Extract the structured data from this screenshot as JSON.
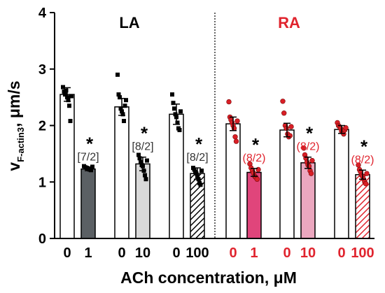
{
  "chart_data": {
    "type": "bar",
    "ylabel_main": "v",
    "ylabel_sub": "F-actin3",
    "ylabel_units": "μm/s",
    "xlabel": "ACh concentration, μM",
    "ylim": [
      0,
      4
    ],
    "yticks": [
      "0",
      "1",
      "2",
      "3",
      "4"
    ],
    "group_labels": [
      "LA",
      "RA"
    ],
    "categories": [
      "0",
      "1",
      "0",
      "10",
      "0",
      "100",
      "0",
      "1",
      "0",
      "10",
      "0",
      "100"
    ],
    "values": [
      2.55,
      1.23,
      2.33,
      1.32,
      2.2,
      1.15,
      2.03,
      1.17,
      1.92,
      1.34,
      1.93,
      1.13
    ],
    "errors": [
      0.12,
      0.03,
      0.15,
      0.12,
      0.18,
      0.1,
      0.12,
      0.07,
      0.12,
      0.1,
      0.07,
      0.08
    ],
    "points": [
      [
        2.68,
        2.6,
        2.55,
        2.62,
        2.5,
        2.45,
        2.35,
        2.08,
        2.52
      ],
      [
        1.28,
        1.26,
        1.25,
        1.24,
        1.22,
        1.21,
        1.27
      ],
      [
        2.9,
        2.55,
        2.5,
        2.3,
        2.25,
        2.2,
        2.08,
        2.35,
        2.45
      ],
      [
        1.48,
        1.42,
        1.35,
        1.3,
        1.28,
        1.2,
        1.12,
        1.05,
        1.38
      ],
      [
        2.55,
        2.4,
        2.3,
        2.2,
        2.15,
        2.05,
        1.95,
        1.92,
        2.25
      ],
      [
        1.25,
        1.22,
        1.18,
        1.15,
        1.1,
        1.05,
        0.98,
        0.95,
        1.2
      ],
      [
        2.42,
        2.15,
        2.1,
        2.05,
        2.0,
        1.95,
        1.8,
        1.72,
        2.08
      ],
      [
        1.32,
        1.25,
        1.2,
        1.16,
        1.1,
        1.08,
        1.05,
        1.22
      ],
      [
        2.43,
        2.22,
        2.0,
        1.95,
        1.85,
        1.8,
        1.82,
        1.98
      ],
      [
        1.6,
        1.48,
        1.42,
        1.35,
        1.3,
        1.28,
        1.2,
        1.15,
        1.38
      ],
      [
        2.05,
        2.0,
        1.98,
        1.95,
        1.9,
        1.88,
        1.85,
        1.92,
        1.96
      ],
      [
        1.3,
        1.22,
        1.18,
        1.12,
        1.1,
        1.05,
        1.0,
        0.97,
        1.15
      ]
    ],
    "annotations": [
      "[7/2]",
      "[8/2]",
      "[8/2]",
      "(8/2)",
      "(8/2)",
      "(8/2)"
    ],
    "significance": [
      "*",
      "*",
      "*",
      "*",
      "*",
      "*"
    ],
    "colors": {
      "control_fill": "#ffffff",
      "la_1": "#5b6064",
      "la_10": "#d9d9d9",
      "la_100_hatch": "#000000",
      "ra_1": "#e0457b",
      "ra_10": "#eba7bf",
      "ra_100_hatch": "#e0242e",
      "la_points": "#000000",
      "ra_points": "#d91f26",
      "ra_label": "#e0242e",
      "annotation_la": "#333333",
      "annotation_ra": "#e0242e"
    }
  }
}
